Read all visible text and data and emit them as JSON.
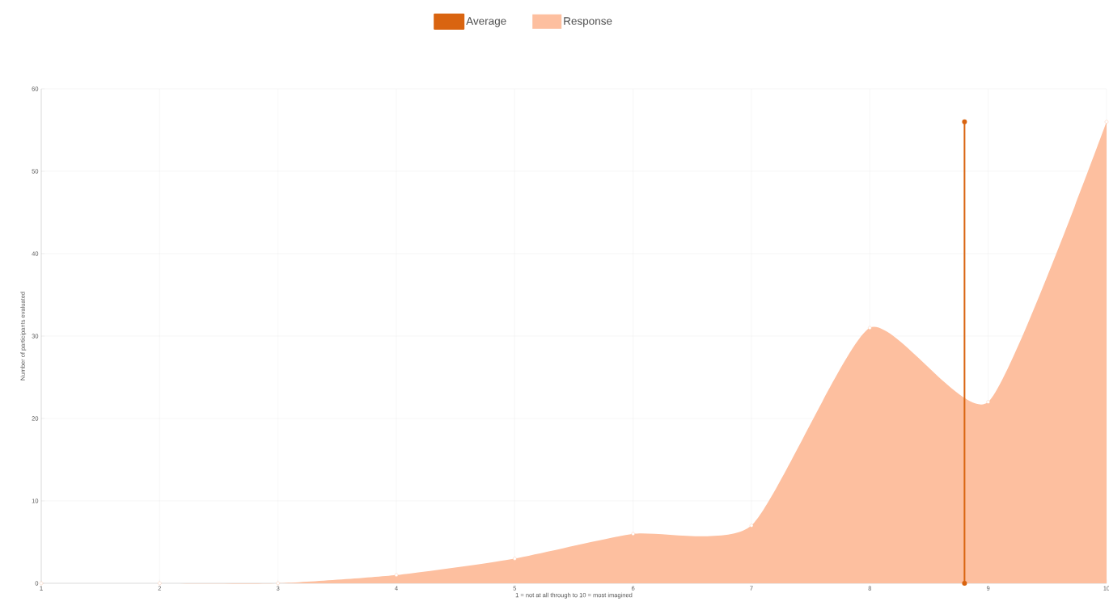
{
  "chart_data": {
    "type": "area",
    "xlabel": "1 = not at all through to 10 = most imagined",
    "ylabel": "Number of participants evaluated",
    "xlim": [
      1,
      10
    ],
    "ylim": [
      0,
      60
    ],
    "xticks": [
      1,
      2,
      3,
      4,
      5,
      6,
      7,
      8,
      9,
      10
    ],
    "yticks": [
      0,
      10,
      20,
      30,
      40,
      50,
      60
    ],
    "grid": true,
    "legend": "top",
    "marker": "circle",
    "series": [
      {
        "name": "Average",
        "type": "line",
        "color": "#d96410",
        "x": [
          8.8,
          8.8
        ],
        "values": [
          0,
          56
        ]
      },
      {
        "name": "Response",
        "color": "#fdbf9f",
        "x": [
          1,
          2,
          3,
          4,
          5,
          6,
          7,
          8,
          9,
          10
        ],
        "values": [
          0,
          0,
          0,
          1,
          3,
          6,
          7,
          31,
          22,
          56
        ]
      }
    ]
  }
}
